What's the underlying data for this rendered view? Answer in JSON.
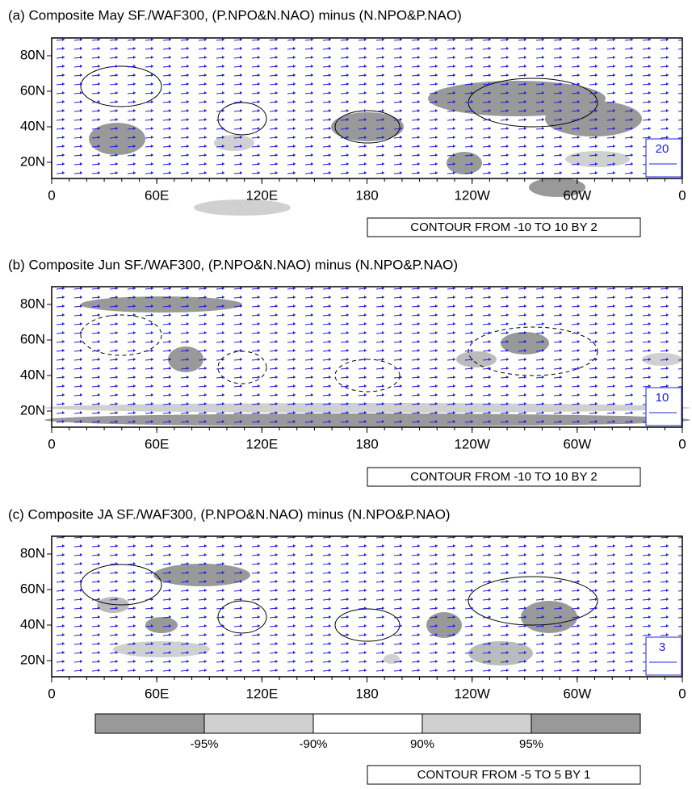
{
  "panels": [
    {
      "title": "(a) Composite May SF./WAF300,   (P.NPO&N.NAO) minus (N.NPO&P.NAO)",
      "lat_labels": [
        "80N",
        "60N",
        "40N",
        "20N"
      ],
      "lon_labels": [
        "0",
        "60E",
        "120E",
        "180",
        "120W",
        "60W",
        "0"
      ],
      "ref_vector": "20",
      "contour_note": "CONTOUR FROM -10 TO 10 BY 2"
    },
    {
      "title": "(b) Composite Jun SF./WAF300,   (P.NPO&N.NAO) minus (N.NPO&P.NAO)",
      "lat_labels": [
        "80N",
        "60N",
        "40N",
        "20N"
      ],
      "lon_labels": [
        "0",
        "60E",
        "120E",
        "180",
        "120W",
        "60W",
        "0"
      ],
      "ref_vector": "10",
      "contour_note": "CONTOUR FROM -10 TO 10 BY 2"
    },
    {
      "title": "(c) Composite JA SF./WAF300,   (P.NPO&N.NAO) minus (N.NPO&P.NAO)",
      "lat_labels": [
        "80N",
        "60N",
        "40N",
        "20N"
      ],
      "lon_labels": [
        "0",
        "60E",
        "120E",
        "180",
        "120W",
        "60W",
        "0"
      ],
      "ref_vector": "3",
      "contour_note": "CONTOUR FROM -5 TO 5 BY 1"
    }
  ],
  "colorbar": {
    "labels": [
      "-95%",
      "-90%",
      "90%",
      "95%"
    ]
  }
}
